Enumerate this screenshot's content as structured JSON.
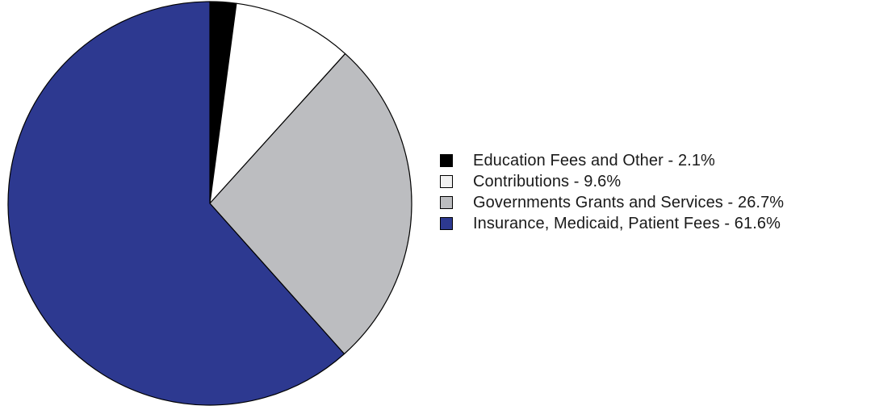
{
  "chart_data": {
    "type": "pie",
    "title": "",
    "legend_position": "right",
    "start_angle_deg": 0,
    "direction": "clockwise",
    "slices": [
      {
        "label": "Education Fees and Other - 2.1%",
        "category": "Education Fees and Other",
        "value": 2.1,
        "color": "#000000"
      },
      {
        "label": "Contributions - 9.6%",
        "category": "Contributions",
        "value": 9.6,
        "color": "#ffffff"
      },
      {
        "label": "Governments Grants and Services - 26.7%",
        "category": "Governments Grants and Services",
        "value": 26.7,
        "color": "#bcbdc0"
      },
      {
        "label": "Insurance, Medicaid, Patient Fees - 61.6%",
        "category": "Insurance, Medicaid, Patient Fees",
        "value": 61.6,
        "color": "#2d3990"
      }
    ]
  },
  "legend": {
    "items": [
      {
        "label": "Education Fees and Other - 2.1%",
        "swatch_color": "#000000"
      },
      {
        "label": "Contributions - 9.6%",
        "swatch_color": "#f2f2f2"
      },
      {
        "label": "Governments Grants and Services - 26.7%",
        "swatch_color": "#bcbdc0"
      },
      {
        "label": "Insurance, Medicaid, Patient Fees - 61.6%",
        "swatch_color": "#2d3990"
      }
    ]
  }
}
